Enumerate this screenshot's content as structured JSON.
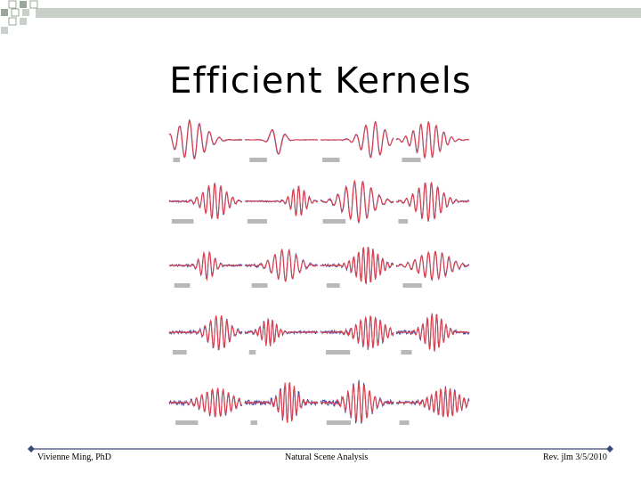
{
  "title": "Efficient Kernels",
  "footer": {
    "left": "Vivienne Ming, PhD",
    "center": "Natural Scene Analysis",
    "right": "Rev. jlm 3/5/2010"
  }
}
